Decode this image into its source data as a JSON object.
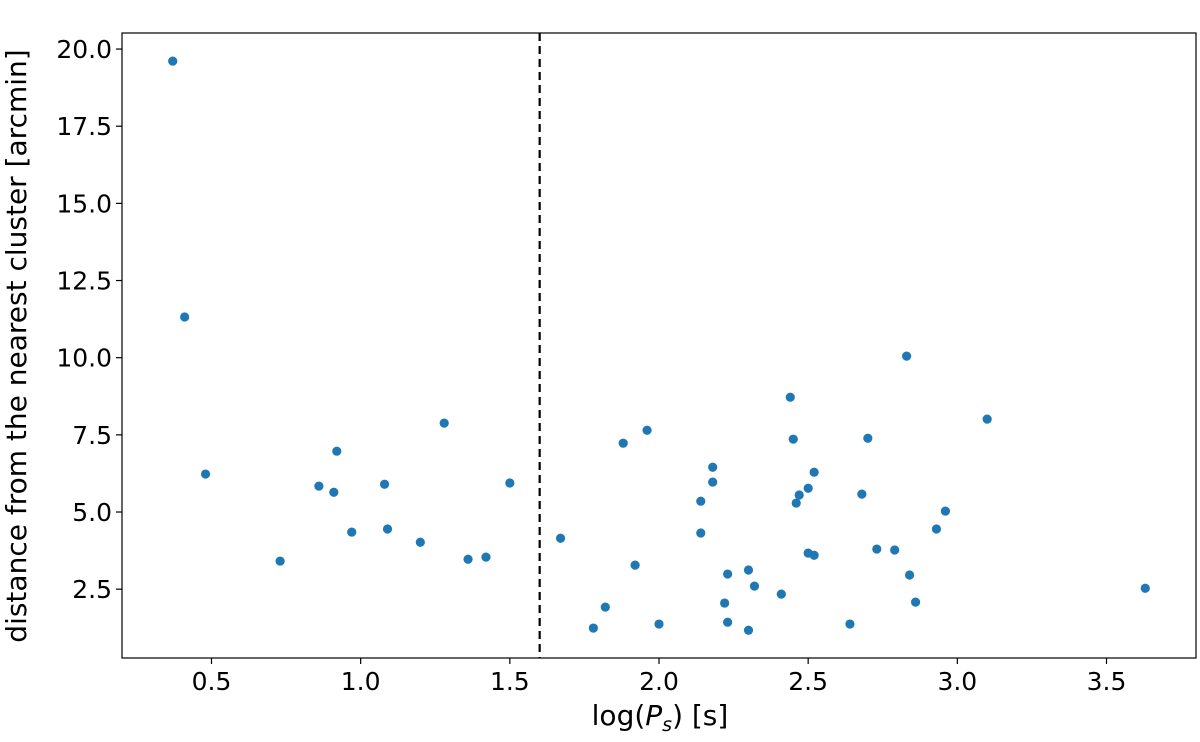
{
  "chart_data": {
    "type": "scatter",
    "x": [
      0.37,
      0.41,
      0.48,
      0.73,
      0.86,
      0.91,
      0.92,
      0.97,
      1.08,
      1.09,
      1.2,
      1.28,
      1.36,
      1.42,
      1.5,
      1.67,
      1.78,
      1.82,
      1.88,
      1.92,
      1.96,
      2.0,
      2.14,
      2.14,
      2.18,
      2.18,
      2.23,
      2.22,
      2.23,
      2.3,
      2.3,
      2.32,
      2.41,
      2.44,
      2.45,
      2.46,
      2.47,
      2.5,
      2.5,
      2.52,
      2.52,
      2.64,
      2.68,
      2.7,
      2.73,
      2.79,
      2.83,
      2.84,
      2.86,
      2.93,
      2.96,
      3.1,
      3.63
    ],
    "values": [
      19.61,
      11.32,
      6.23,
      3.41,
      5.84,
      5.64,
      6.97,
      4.35,
      5.9,
      4.45,
      4.02,
      7.88,
      3.47,
      3.54,
      5.94,
      4.15,
      1.24,
      1.92,
      7.23,
      3.28,
      7.65,
      1.37,
      5.35,
      4.32,
      5.97,
      6.45,
      2.99,
      2.05,
      1.43,
      3.12,
      1.17,
      2.6,
      2.34,
      8.72,
      7.36,
      5.29,
      5.55,
      3.67,
      5.77,
      3.6,
      6.29,
      1.37,
      5.58,
      7.39,
      3.8,
      3.77,
      10.05,
      2.96,
      2.08,
      4.45,
      5.03,
      8.01,
      2.53
    ],
    "color": "#1f77b4",
    "xlabel": {
      "prefix": "log(",
      "symbol": "P",
      "subscript": "s",
      "suffix": ") [s]"
    },
    "ylabel": "distance from the nearest cluster [arcmin]",
    "xlim": [
      0.2,
      3.8
    ],
    "ylim": [
      0.27,
      20.52
    ],
    "xticks": [
      0.5,
      {
        "value": 1,
        "label": "1.0"
      },
      1.5,
      {
        "value": 2,
        "label": "2.0"
      },
      2.5,
      {
        "value": 3,
        "label": "3.0"
      },
      3.5
    ],
    "yticks": [
      2.5,
      {
        "value": 5,
        "label": "5.0"
      },
      7.5,
      {
        "value": 10,
        "label": "10.0"
      },
      12.5,
      {
        "value": 15,
        "label": "15.0"
      },
      17.5,
      {
        "value": 20,
        "label": "20.0"
      }
    ],
    "vline": {
      "x": 1.6,
      "color": "#000000",
      "dashed": true
    }
  }
}
